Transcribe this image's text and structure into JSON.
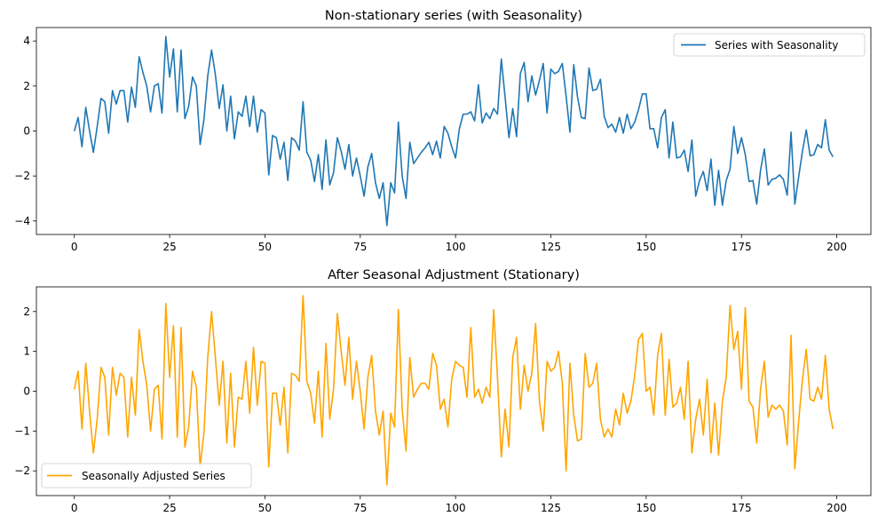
{
  "chart_data": [
    {
      "type": "line",
      "title": "Non-stationary series (with Seasonality)",
      "xlabel": "",
      "ylabel": "",
      "xlim": [
        -9.95,
        208.95
      ],
      "ylim": [
        -4.6,
        4.6
      ],
      "xticks": [
        0,
        25,
        50,
        75,
        100,
        125,
        150,
        175,
        200
      ],
      "xtick_labels": [
        "0",
        "25",
        "50",
        "75",
        "100",
        "125",
        "150",
        "175",
        "200"
      ],
      "yticks": [
        -4,
        -2,
        0,
        2,
        4
      ],
      "ytick_labels": [
        "−4",
        "−2",
        "0",
        "2",
        "4"
      ],
      "legend_position": "top-right",
      "series": [
        {
          "name": "Series with Seasonality",
          "color": "#1f77b4",
          "x_start": 0,
          "values": [
            0.0,
            0.6,
            -0.7,
            1.05,
            0.0,
            -0.95,
            0.2,
            1.45,
            1.3,
            -0.1,
            1.8,
            1.2,
            1.8,
            1.8,
            0.4,
            1.95,
            1.05,
            3.3,
            2.6,
            2.0,
            0.85,
            2.0,
            2.1,
            0.8,
            4.2,
            2.4,
            3.65,
            0.85,
            3.6,
            0.55,
            1.1,
            2.4,
            2.0,
            -0.6,
            0.5,
            2.45,
            3.6,
            2.5,
            1.0,
            2.05,
            0.0,
            1.55,
            -0.35,
            0.85,
            0.65,
            1.55,
            0.2,
            1.55,
            -0.05,
            0.95,
            0.8,
            -1.95,
            -0.2,
            -0.3,
            -1.25,
            -0.5,
            -2.2,
            -0.3,
            -0.45,
            -0.85,
            1.3,
            -0.95,
            -1.3,
            -2.25,
            -1.05,
            -2.6,
            -0.4,
            -2.4,
            -1.85,
            -0.3,
            -0.9,
            -1.7,
            -0.6,
            -2.0,
            -1.2,
            -2.0,
            -2.9,
            -1.6,
            -1.0,
            -2.3,
            -3.0,
            -2.3,
            -4.2,
            -2.3,
            -2.75,
            0.4,
            -2.0,
            -3.0,
            -0.5,
            -1.45,
            -1.2,
            -0.95,
            -0.75,
            -0.5,
            -1.05,
            -0.45,
            -1.2,
            0.2,
            -0.1,
            -0.7,
            -1.2,
            0.1,
            0.75,
            0.75,
            0.85,
            0.45,
            2.05,
            0.35,
            0.8,
            0.55,
            1.0,
            0.75,
            3.2,
            1.5,
            -0.3,
            1.0,
            -0.25,
            2.55,
            3.05,
            1.3,
            2.45,
            1.6,
            2.25,
            3.0,
            0.8,
            2.75,
            2.55,
            2.65,
            3.0,
            1.55,
            -0.05,
            2.95,
            1.5,
            0.6,
            0.55,
            2.8,
            1.8,
            1.85,
            2.3,
            0.65,
            0.15,
            0.3,
            -0.05,
            0.6,
            -0.1,
            0.75,
            0.1,
            0.4,
            0.95,
            1.65,
            1.65,
            0.1,
            0.1,
            -0.75,
            0.6,
            0.95,
            -1.2,
            0.4,
            -1.2,
            -1.15,
            -0.85,
            -1.8,
            -0.4,
            -2.9,
            -2.2,
            -1.8,
            -2.65,
            -1.25,
            -3.3,
            -1.75,
            -3.3,
            -2.2,
            -1.7,
            0.2,
            -1.0,
            -0.3,
            -1.05,
            -2.25,
            -2.2,
            -3.25,
            -1.75,
            -0.8,
            -2.4,
            -2.15,
            -2.1,
            -1.95,
            -2.15,
            -2.85,
            -0.05,
            -3.25,
            -2.05,
            -0.9,
            0.05,
            -1.1,
            -1.05,
            -0.6,
            -0.75,
            0.5,
            -0.85,
            -1.15
          ]
        }
      ]
    },
    {
      "type": "line",
      "title": "After Seasonal Adjustment (Stationary)",
      "xlabel": "",
      "ylabel": "",
      "xlim": [
        -9.95,
        208.95
      ],
      "ylim": [
        -2.62,
        2.62
      ],
      "xticks": [
        0,
        25,
        50,
        75,
        100,
        125,
        150,
        175,
        200
      ],
      "xtick_labels": [
        "0",
        "25",
        "50",
        "75",
        "100",
        "125",
        "150",
        "175",
        "200"
      ],
      "yticks": [
        -2,
        -1,
        0,
        1,
        2
      ],
      "ytick_labels": [
        "−2",
        "−1",
        "0",
        "1",
        "2"
      ],
      "legend_position": "bottom-left",
      "series": [
        {
          "name": "Seasonally Adjusted Series",
          "color": "#ffa500",
          "x_start": 0,
          "values": [
            0.05,
            0.5,
            -0.95,
            0.7,
            -0.5,
            -1.55,
            -0.7,
            0.6,
            0.35,
            -1.1,
            0.6,
            -0.1,
            0.45,
            0.35,
            -1.15,
            0.35,
            -0.6,
            1.55,
            0.75,
            0.15,
            -1.0,
            0.05,
            0.15,
            -1.2,
            2.2,
            0.35,
            1.65,
            -1.15,
            1.6,
            -1.4,
            -0.9,
            0.5,
            0.1,
            -1.9,
            -1.05,
            0.85,
            2.0,
            0.85,
            -0.35,
            0.75,
            -1.3,
            0.45,
            -1.4,
            -0.15,
            -0.2,
            0.75,
            -0.55,
            1.1,
            -0.35,
            0.75,
            0.7,
            -1.9,
            -0.05,
            -0.05,
            -0.85,
            0.1,
            -1.55,
            0.45,
            0.4,
            0.25,
            2.4,
            0.25,
            -0.05,
            -0.8,
            0.5,
            -1.15,
            1.2,
            -0.7,
            0.05,
            1.95,
            1.0,
            0.15,
            1.35,
            -0.2,
            0.75,
            0.0,
            -0.95,
            0.35,
            0.9,
            -0.5,
            -1.1,
            -0.5,
            -2.35,
            -0.55,
            -0.9,
            2.05,
            -0.45,
            -1.5,
            0.85,
            -0.15,
            0.05,
            0.2,
            0.2,
            0.05,
            0.95,
            0.65,
            -0.45,
            -0.2,
            -0.9,
            0.3,
            0.75,
            0.65,
            0.6,
            -0.15,
            1.6,
            -0.15,
            0.05,
            -0.3,
            0.1,
            -0.15,
            2.05,
            0.35,
            -1.65,
            -0.45,
            -1.4,
            0.85,
            1.35,
            -0.45,
            0.65,
            0.0,
            0.45,
            1.7,
            -0.25,
            -1.0,
            0.75,
            0.5,
            0.6,
            1.0,
            0.2,
            -2.0,
            0.7,
            -0.6,
            -1.25,
            -1.2,
            0.95,
            0.1,
            0.2,
            0.7,
            -0.7,
            -1.15,
            -0.95,
            -1.15,
            -0.45,
            -0.85,
            -0.05,
            -0.55,
            -0.25,
            0.4,
            1.3,
            1.45,
            0.0,
            0.1,
            -0.6,
            0.9,
            1.45,
            -0.6,
            0.8,
            -0.4,
            -0.3,
            0.1,
            -0.7,
            0.75,
            -1.55,
            -0.7,
            -0.2,
            -1.1,
            0.3,
            -1.55,
            -0.3,
            -1.6,
            -0.25,
            0.35,
            2.15,
            1.05,
            1.5,
            0.05,
            2.1,
            -0.25,
            -0.4,
            -1.3,
            0.05,
            0.75,
            -0.65,
            -0.35,
            -0.45,
            -0.35,
            -0.5,
            -1.35,
            1.4,
            -1.95,
            -0.75,
            0.3,
            1.05,
            -0.2,
            -0.25,
            0.1,
            -0.2,
            0.9,
            -0.45,
            -0.95
          ]
        }
      ]
    }
  ]
}
